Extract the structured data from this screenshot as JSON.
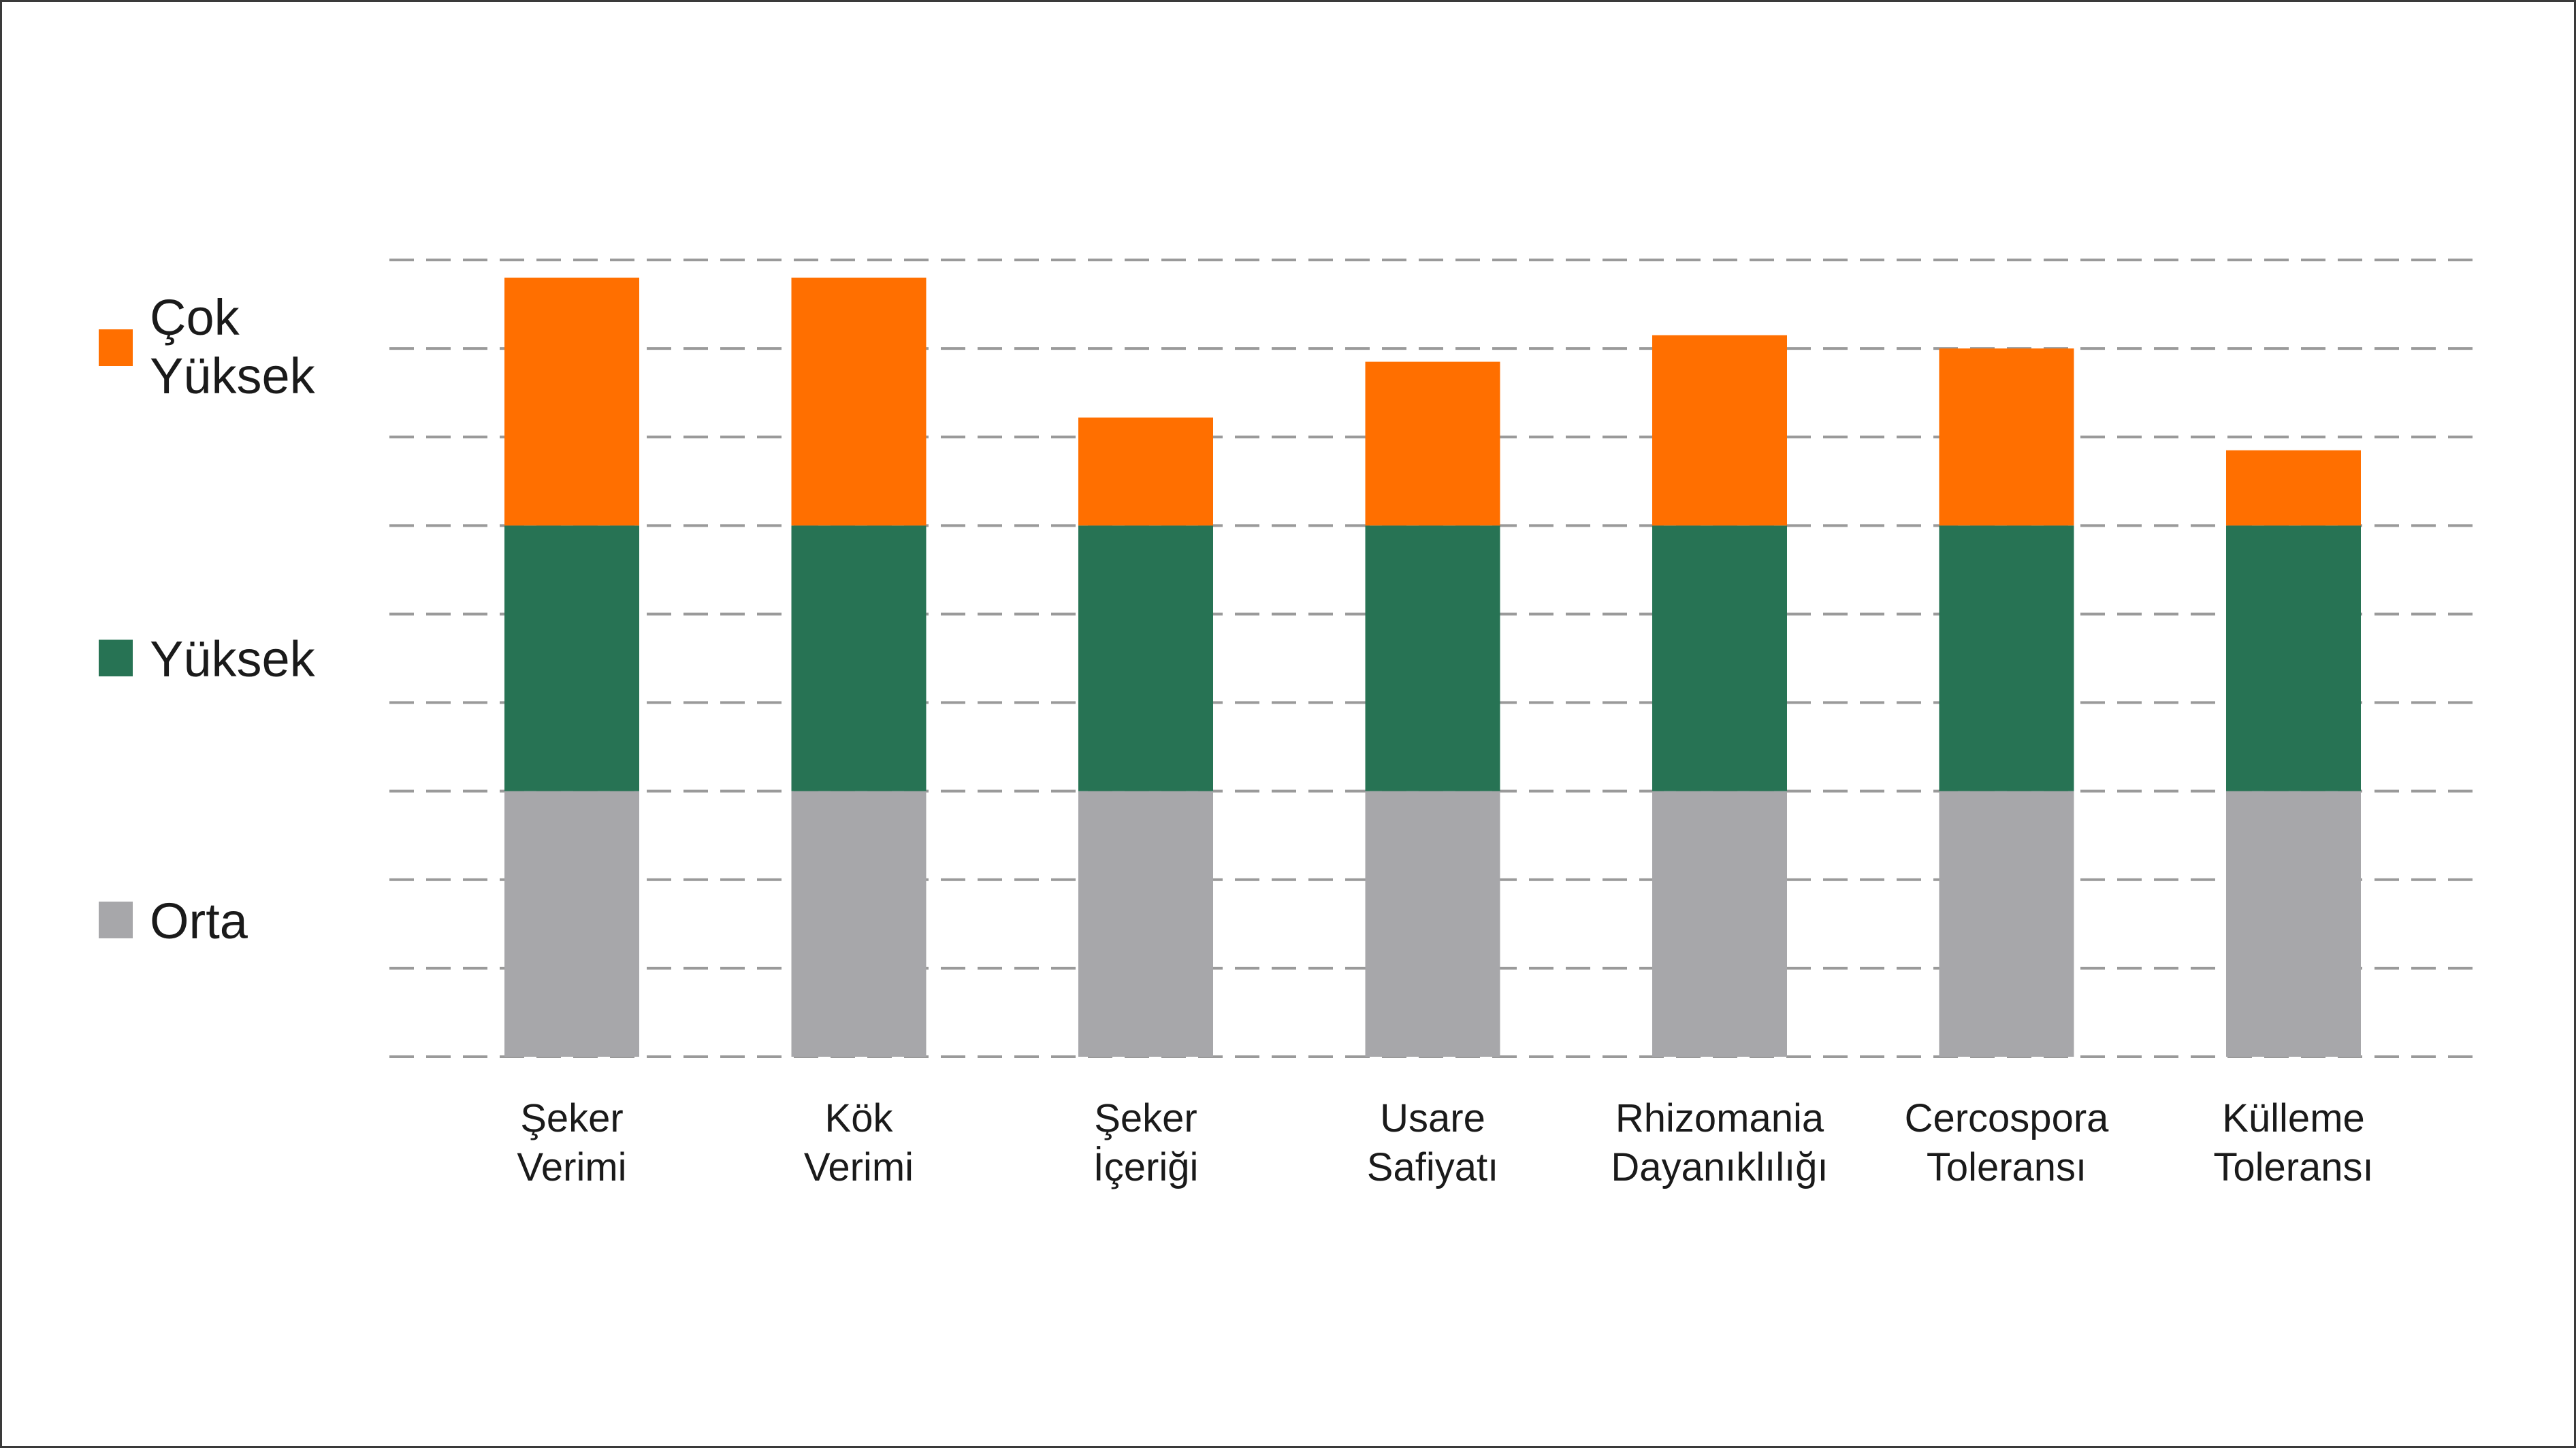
{
  "chart_data": {
    "type": "bar",
    "stacked": true,
    "title": "",
    "xlabel": "",
    "ylabel": "",
    "ylim": [
      0,
      9
    ],
    "grid": true,
    "grid_style": "dashed",
    "legend_position": "left",
    "categories": [
      [
        "Şeker",
        "Verimi"
      ],
      [
        "Kök",
        "Verimi"
      ],
      [
        "Şeker",
        "İçeriği"
      ],
      [
        "Usare",
        "Safiyatı"
      ],
      [
        "Rhizomania",
        "Dayanıklılığı"
      ],
      [
        "Cercospora",
        "Toleransı"
      ],
      [
        "Külleme",
        "Toleransı"
      ]
    ],
    "series": [
      {
        "name": "Orta",
        "color": "#a7a7aa",
        "values": [
          3,
          3,
          3,
          3,
          3,
          3,
          3
        ]
      },
      {
        "name": "Yüksek",
        "color": "#277354",
        "values": [
          3,
          3,
          3,
          3,
          3,
          3,
          3
        ]
      },
      {
        "name": "Çok Yüksek",
        "color": "#ff6f00",
        "values": [
          2.8,
          2.8,
          1.22,
          1.85,
          2.15,
          2.0,
          0.85
        ]
      }
    ],
    "legend": [
      {
        "lines": [
          "Çok",
          "Yüksek"
        ],
        "color": "#ff6f00"
      },
      {
        "lines": [
          "Yüksek"
        ],
        "color": "#277354"
      },
      {
        "lines": [
          "Orta"
        ],
        "color": "#a7a7aa"
      }
    ]
  }
}
